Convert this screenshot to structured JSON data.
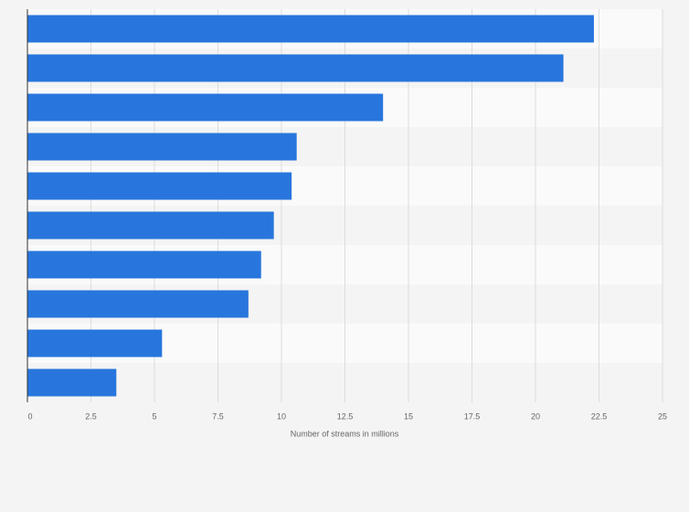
{
  "chart_data": {
    "type": "bar",
    "orientation": "horizontal",
    "x_label": "Number of streams in millions",
    "categories": [
      null,
      null,
      null,
      null,
      null,
      null,
      null,
      null,
      null,
      null
    ],
    "values": [
      22.3,
      21.1,
      14.0,
      10.6,
      10.4,
      9.7,
      9.2,
      8.7,
      5.3,
      3.5
    ],
    "color": "#2876dd",
    "xlim": [
      0,
      25
    ],
    "xticks": [
      0,
      2.5,
      5,
      7.5,
      10,
      12.5,
      15,
      17.5,
      20,
      22.5,
      25
    ],
    "grid": true
  }
}
